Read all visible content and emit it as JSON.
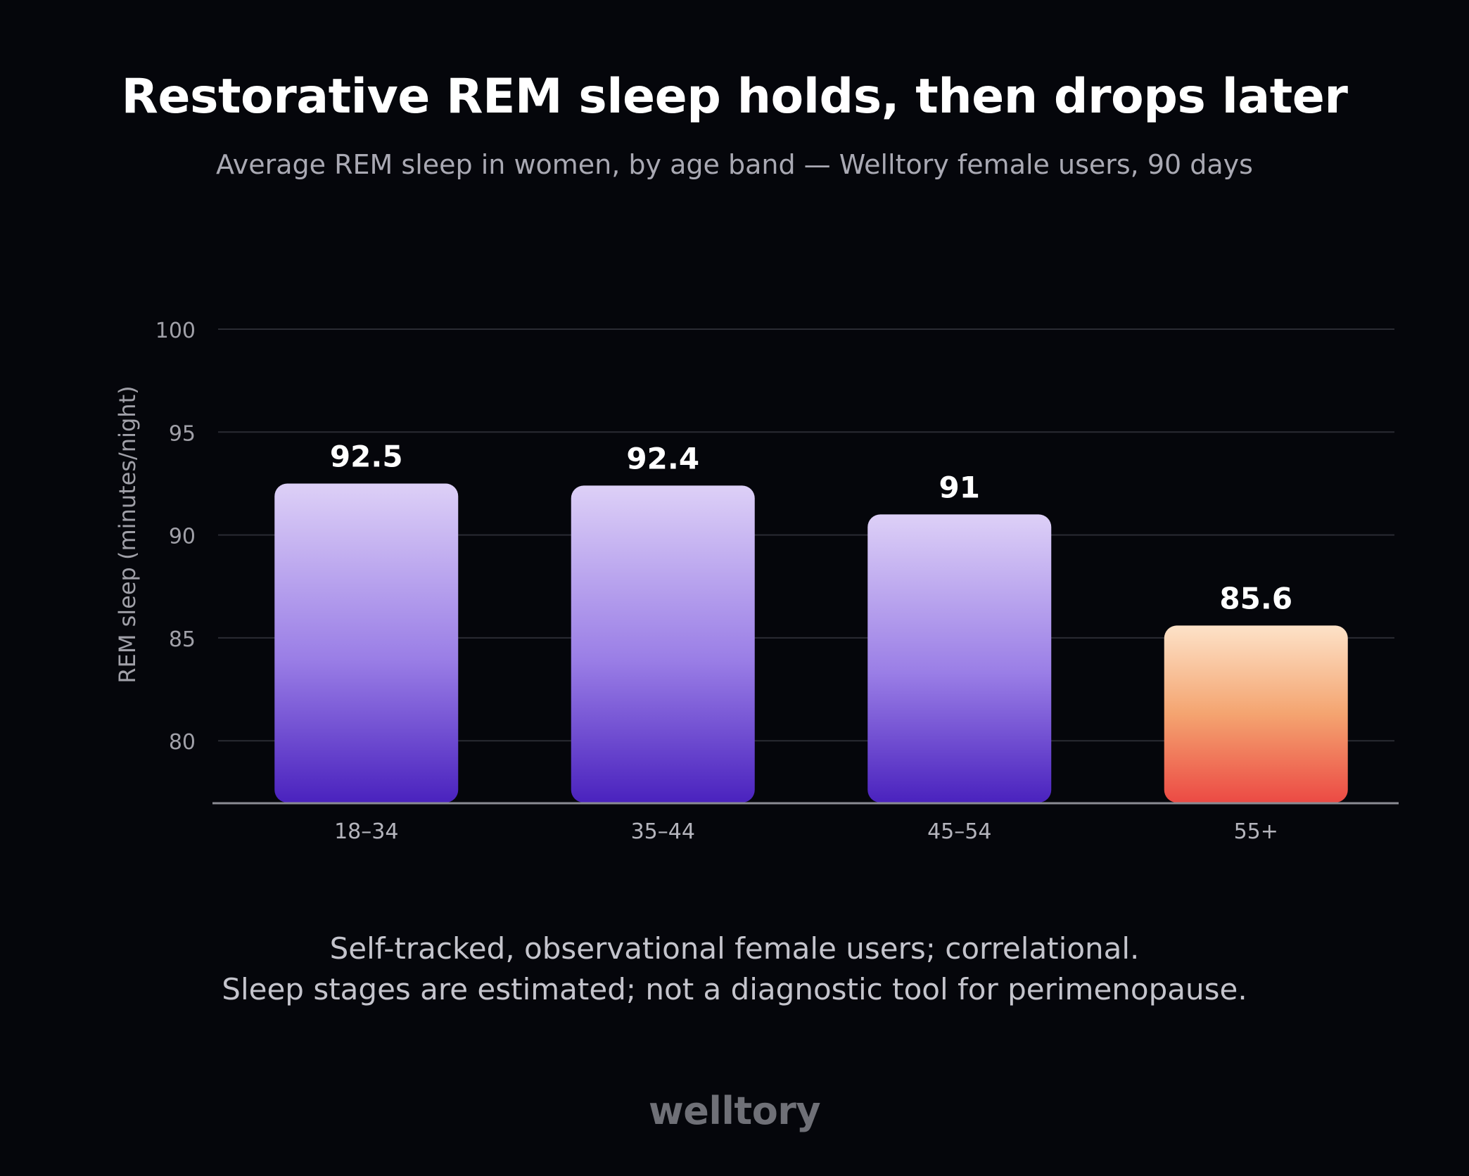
{
  "colors": {
    "background": "#05060b",
    "grid": "#2a2b33",
    "axis": "#8a8b93",
    "purple_top": "#ddd0f7",
    "purple_mid": "#9a7ee6",
    "purple_bottom": "#4a22be",
    "peach_top": "#fde2c8",
    "peach_mid": "#f4a470",
    "peach_bottom": "#ec4a44"
  },
  "chart_data": {
    "type": "bar",
    "title": "Restorative REM sleep holds, then drops later",
    "subtitle": "Average REM sleep in women, by age band — Welltory female users, 90 days",
    "xlabel": "",
    "ylabel": "REM sleep (minutes/night)",
    "categories": [
      "18–34",
      "35–44",
      "45–54",
      "55+"
    ],
    "values": [
      92.5,
      92.4,
      91,
      85.6
    ],
    "value_labels": [
      "92.5",
      "92.4",
      "91",
      "85.6"
    ],
    "highlight": [
      false,
      false,
      false,
      true
    ],
    "yticks": [
      80,
      85,
      90,
      95,
      100
    ],
    "ytick_labels": [
      "80",
      "85",
      "90",
      "95",
      "100"
    ],
    "ylim": [
      77,
      100
    ],
    "grid": true,
    "legend": "none"
  },
  "footnote": {
    "line1": "Self-tracked, observational female users; correlational.",
    "line2": "Sleep stages are estimated; not a diagnostic tool for perimenopause."
  },
  "brand": {
    "logo_text": "welltory"
  }
}
